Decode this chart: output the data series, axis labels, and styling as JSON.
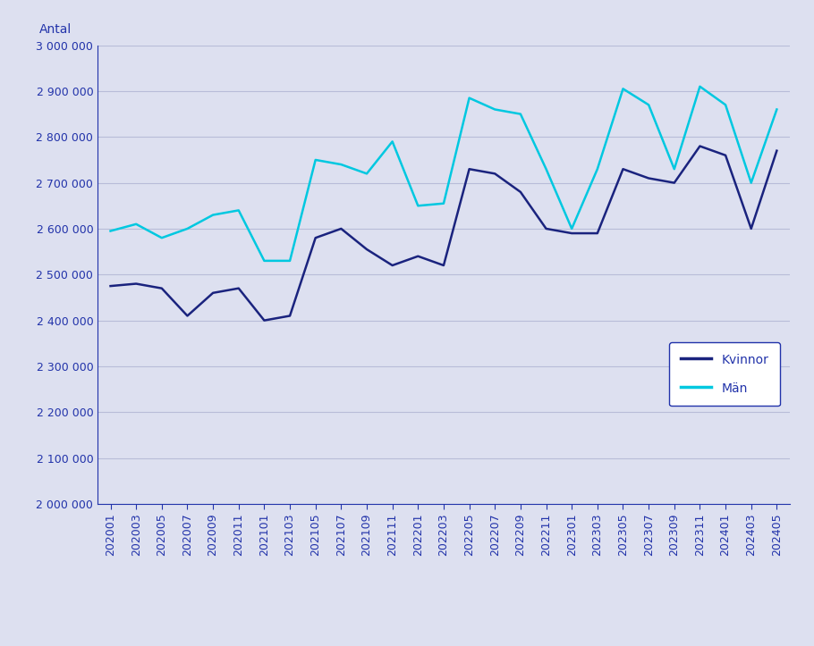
{
  "x_labels": [
    "202001",
    "202003",
    "202005",
    "202007",
    "202009",
    "202011",
    "202101",
    "202103",
    "202105",
    "202107",
    "202109",
    "202111",
    "202201",
    "202203",
    "202205",
    "202207",
    "202209",
    "202211",
    "202301",
    "202303",
    "202305",
    "202307",
    "202309",
    "202311",
    "202401",
    "202403",
    "202405"
  ],
  "kvinnor": [
    2475000,
    2480000,
    2470000,
    2410000,
    2460000,
    2470000,
    2400000,
    2410000,
    2580000,
    2600000,
    2555000,
    2520000,
    2540000,
    2520000,
    2730000,
    2720000,
    2680000,
    2600000,
    2590000,
    2590000,
    2730000,
    2710000,
    2700000,
    2780000,
    2760000,
    2600000,
    2770000
  ],
  "man": [
    2595000,
    2610000,
    2580000,
    2600000,
    2630000,
    2640000,
    2530000,
    2530000,
    2750000,
    2740000,
    2720000,
    2790000,
    2650000,
    2655000,
    2885000,
    2860000,
    2850000,
    2730000,
    2600000,
    2730000,
    2905000,
    2870000,
    2730000,
    2910000,
    2870000,
    2700000,
    2860000
  ],
  "kvinnor_color": "#1a237e",
  "man_color": "#00c8e0",
  "background_color": "#dde0f0",
  "plot_bg_color": "#dde0f0",
  "ylabel": "Antal",
  "ylim_min": 2000000,
  "ylim_max": 3000000,
  "ytick_step": 100000,
  "legend_labels": [
    "Kvinnor",
    "Män"
  ],
  "grid_color": "#b8bcd8",
  "axis_color": "#2233aa",
  "tick_color": "#2233aa",
  "label_fontsize": 9,
  "legend_fontsize": 10
}
